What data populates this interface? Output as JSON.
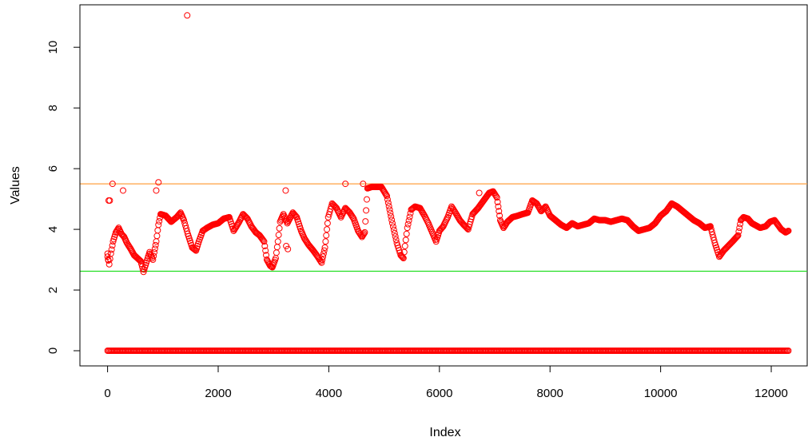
{
  "chart_data": {
    "type": "scatter",
    "title": "",
    "xlabel": "Index",
    "ylabel": "Values",
    "xlim": [
      -500,
      12650
    ],
    "ylim": [
      -0.5,
      11.4
    ],
    "x_ticks": [
      0,
      2000,
      4000,
      6000,
      8000,
      10000,
      12000
    ],
    "x_tick_labels": [
      "0",
      "2000",
      "4000",
      "6000",
      "8000",
      "10000",
      "12000"
    ],
    "y_ticks": [
      0,
      2,
      4,
      6,
      8,
      10
    ],
    "y_tick_labels": [
      "0",
      "2",
      "4",
      "6",
      "8",
      "10"
    ],
    "grid": false,
    "marker": "open-circle",
    "marker_color": "#ff0000",
    "hlines": [
      {
        "y": 5.5,
        "color": "#ffa040"
      },
      {
        "y": 2.62,
        "color": "#22dd22"
      }
    ],
    "series": [
      {
        "values_trend": [
          [
            0,
            3.1
          ],
          [
            30,
            2.85
          ],
          [
            60,
            3.2
          ],
          [
            100,
            3.6
          ],
          [
            150,
            3.9
          ],
          [
            200,
            4.05
          ],
          [
            250,
            3.85
          ],
          [
            300,
            3.75
          ],
          [
            350,
            3.55
          ],
          [
            420,
            3.35
          ],
          [
            480,
            3.15
          ],
          [
            540,
            3.05
          ],
          [
            600,
            2.95
          ],
          [
            650,
            2.6
          ],
          [
            700,
            2.9
          ],
          [
            760,
            3.25
          ],
          [
            820,
            3.0
          ],
          [
            880,
            3.6
          ],
          [
            920,
            4.15
          ],
          [
            960,
            4.5
          ],
          [
            1050,
            4.45
          ],
          [
            1150,
            4.25
          ],
          [
            1250,
            4.4
          ],
          [
            1320,
            4.55
          ],
          [
            1380,
            4.3
          ],
          [
            1450,
            3.85
          ],
          [
            1530,
            3.4
          ],
          [
            1600,
            3.3
          ],
          [
            1650,
            3.6
          ],
          [
            1720,
            3.95
          ],
          [
            1800,
            4.05
          ],
          [
            1900,
            4.15
          ],
          [
            2000,
            4.2
          ],
          [
            2100,
            4.35
          ],
          [
            2200,
            4.4
          ],
          [
            2280,
            3.95
          ],
          [
            2380,
            4.25
          ],
          [
            2450,
            4.5
          ],
          [
            2530,
            4.35
          ],
          [
            2600,
            4.1
          ],
          [
            2680,
            3.9
          ],
          [
            2750,
            3.8
          ],
          [
            2830,
            3.6
          ],
          [
            2880,
            3.0
          ],
          [
            2940,
            2.8
          ],
          [
            2980,
            2.75
          ],
          [
            3040,
            3.05
          ],
          [
            3080,
            3.6
          ],
          [
            3120,
            4.25
          ],
          [
            3180,
            4.5
          ],
          [
            3250,
            4.2
          ],
          [
            3350,
            4.55
          ],
          [
            3420,
            4.4
          ],
          [
            3500,
            3.95
          ],
          [
            3560,
            3.7
          ],
          [
            3630,
            3.5
          ],
          [
            3720,
            3.3
          ],
          [
            3800,
            3.1
          ],
          [
            3870,
            2.9
          ],
          [
            3930,
            3.4
          ],
          [
            3990,
            4.4
          ],
          [
            4060,
            4.85
          ],
          [
            4140,
            4.7
          ],
          [
            4220,
            4.4
          ],
          [
            4300,
            4.7
          ],
          [
            4380,
            4.55
          ],
          [
            4450,
            4.35
          ],
          [
            4530,
            3.95
          ],
          [
            4600,
            3.75
          ],
          [
            4650,
            3.9
          ],
          [
            4700,
            5.35
          ],
          [
            4780,
            5.4
          ],
          [
            4850,
            5.4
          ],
          [
            4950,
            5.4
          ],
          [
            5050,
            5.1
          ],
          [
            5150,
            4.2
          ],
          [
            5230,
            3.55
          ],
          [
            5300,
            3.15
          ],
          [
            5350,
            3.05
          ],
          [
            5420,
            4.05
          ],
          [
            5490,
            4.65
          ],
          [
            5560,
            4.75
          ],
          [
            5650,
            4.7
          ],
          [
            5730,
            4.45
          ],
          [
            5800,
            4.2
          ],
          [
            5870,
            3.9
          ],
          [
            5940,
            3.6
          ],
          [
            6000,
            3.95
          ],
          [
            6070,
            4.1
          ],
          [
            6150,
            4.4
          ],
          [
            6220,
            4.75
          ],
          [
            6290,
            4.55
          ],
          [
            6370,
            4.3
          ],
          [
            6440,
            4.15
          ],
          [
            6520,
            4.0
          ],
          [
            6600,
            4.5
          ],
          [
            6700,
            4.7
          ],
          [
            6800,
            4.95
          ],
          [
            6900,
            5.2
          ],
          [
            6970,
            5.25
          ],
          [
            7040,
            5.05
          ],
          [
            7100,
            4.3
          ],
          [
            7160,
            4.05
          ],
          [
            7230,
            4.25
          ],
          [
            7320,
            4.4
          ],
          [
            7420,
            4.45
          ],
          [
            7500,
            4.5
          ],
          [
            7600,
            4.55
          ],
          [
            7680,
            4.95
          ],
          [
            7760,
            4.85
          ],
          [
            7840,
            4.6
          ],
          [
            7920,
            4.75
          ],
          [
            8000,
            4.45
          ],
          [
            8100,
            4.3
          ],
          [
            8200,
            4.15
          ],
          [
            8300,
            4.05
          ],
          [
            8400,
            4.2
          ],
          [
            8500,
            4.1
          ],
          [
            8600,
            4.15
          ],
          [
            8700,
            4.2
          ],
          [
            8800,
            4.35
          ],
          [
            8900,
            4.3
          ],
          [
            9000,
            4.3
          ],
          [
            9100,
            4.25
          ],
          [
            9200,
            4.3
          ],
          [
            9300,
            4.35
          ],
          [
            9400,
            4.3
          ],
          [
            9500,
            4.1
          ],
          [
            9600,
            3.95
          ],
          [
            9700,
            4.0
          ],
          [
            9800,
            4.05
          ],
          [
            9900,
            4.2
          ],
          [
            10000,
            4.45
          ],
          [
            10100,
            4.6
          ],
          [
            10200,
            4.85
          ],
          [
            10300,
            4.75
          ],
          [
            10400,
            4.6
          ],
          [
            10500,
            4.45
          ],
          [
            10600,
            4.3
          ],
          [
            10700,
            4.2
          ],
          [
            10800,
            4.05
          ],
          [
            10900,
            4.1
          ],
          [
            10980,
            3.55
          ],
          [
            11060,
            3.1
          ],
          [
            11140,
            3.3
          ],
          [
            11220,
            3.45
          ],
          [
            11300,
            3.6
          ],
          [
            11400,
            3.8
          ],
          [
            11450,
            4.3
          ],
          [
            11500,
            4.4
          ],
          [
            11580,
            4.35
          ],
          [
            11650,
            4.2
          ],
          [
            11700,
            4.15
          ],
          [
            11800,
            4.05
          ],
          [
            11900,
            4.1
          ],
          [
            11980,
            4.25
          ],
          [
            12060,
            4.3
          ],
          [
            12120,
            4.15
          ],
          [
            12180,
            4.0
          ],
          [
            12260,
            3.9
          ],
          [
            12310,
            3.95
          ]
        ],
        "outliers": [
          [
            1440,
            11.05
          ],
          [
            20,
            4.95
          ],
          [
            40,
            4.95
          ],
          [
            90,
            5.5
          ],
          [
            280,
            5.28
          ],
          [
            880,
            5.28
          ],
          [
            920,
            5.55
          ],
          [
            3220,
            5.28
          ],
          [
            4300,
            5.5
          ],
          [
            4620,
            5.5
          ],
          [
            6720,
            5.2
          ],
          [
            3230,
            3.45
          ],
          [
            3260,
            3.35
          ],
          [
            0,
            3.2
          ],
          [
            10,
            3.0
          ]
        ],
        "zeros_x_range": [
          0,
          12310
        ]
      }
    ]
  }
}
